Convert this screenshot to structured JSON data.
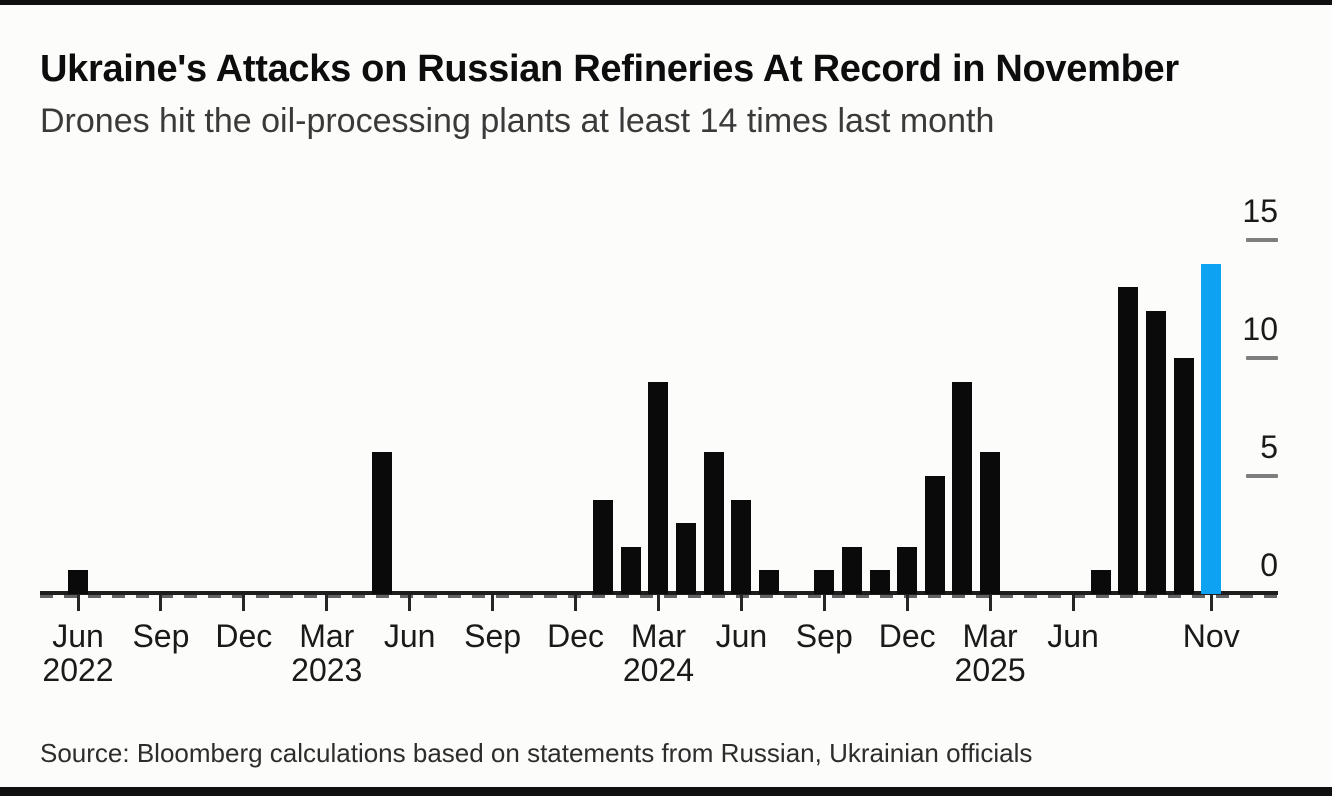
{
  "chart_data": {
    "type": "bar",
    "title": "Ukraine's Attacks on Russian Refineries At Record in November",
    "subtitle": "Drones hit the oil-processing plants at least 14 times last month",
    "source": "Source: Bloomberg calculations based on statements from Russian, Ukrainian officials",
    "xlabel": "",
    "ylabel": "",
    "ylim": [
      0,
      15
    ],
    "yticks": [
      0,
      5,
      10,
      15
    ],
    "yaxis_side": "right",
    "grid": "short right-edge dashes at 5, 10, 15",
    "legend": "none",
    "bar_color": "#0a0a0a",
    "highlight_color": "#0da2f2",
    "highlight_index": 41,
    "categories": [
      "Jun 2022",
      "Jul 2022",
      "Aug 2022",
      "Sep 2022",
      "Oct 2022",
      "Nov 2022",
      "Dec 2022",
      "Jan 2023",
      "Feb 2023",
      "Mar 2023",
      "Apr 2023",
      "May 2023",
      "Jun 2023",
      "Jul 2023",
      "Aug 2023",
      "Sep 2023",
      "Oct 2023",
      "Nov 2023",
      "Dec 2023",
      "Jan 2024",
      "Feb 2024",
      "Mar 2024",
      "Apr 2024",
      "May 2024",
      "Jun 2024",
      "Jul 2024",
      "Aug 2024",
      "Sep 2024",
      "Oct 2024",
      "Nov 2024",
      "Dec 2024",
      "Jan 2025",
      "Feb 2025",
      "Mar 2025",
      "Apr 2025",
      "May 2025",
      "Jun 2025",
      "Jul 2025",
      "Aug 2025",
      "Sep 2025",
      "Oct 2025",
      "Nov 2025"
    ],
    "values": [
      1,
      0,
      0,
      0,
      0,
      0,
      0,
      0,
      0,
      0,
      0,
      6,
      0,
      0,
      0,
      0,
      0,
      0,
      0,
      4,
      2,
      9,
      3,
      6,
      4,
      1,
      0,
      1,
      2,
      1,
      2,
      5,
      9,
      6,
      0,
      0,
      0,
      1,
      13,
      12,
      10,
      14
    ],
    "x_ticks": [
      {
        "month_index": 0,
        "label": "Jun",
        "year": "2022"
      },
      {
        "month_index": 3,
        "label": "Sep",
        "year": ""
      },
      {
        "month_index": 6,
        "label": "Dec",
        "year": ""
      },
      {
        "month_index": 9,
        "label": "Mar",
        "year": "2023"
      },
      {
        "month_index": 12,
        "label": "Jun",
        "year": ""
      },
      {
        "month_index": 15,
        "label": "Sep",
        "year": ""
      },
      {
        "month_index": 18,
        "label": "Dec",
        "year": ""
      },
      {
        "month_index": 21,
        "label": "Mar",
        "year": "2024"
      },
      {
        "month_index": 24,
        "label": "Jun",
        "year": ""
      },
      {
        "month_index": 27,
        "label": "Sep",
        "year": ""
      },
      {
        "month_index": 30,
        "label": "Dec",
        "year": ""
      },
      {
        "month_index": 33,
        "label": "Mar",
        "year": "2025"
      },
      {
        "month_index": 36,
        "label": "Jun",
        "year": ""
      },
      {
        "month_index": 41,
        "label": "Nov",
        "year": ""
      }
    ]
  }
}
